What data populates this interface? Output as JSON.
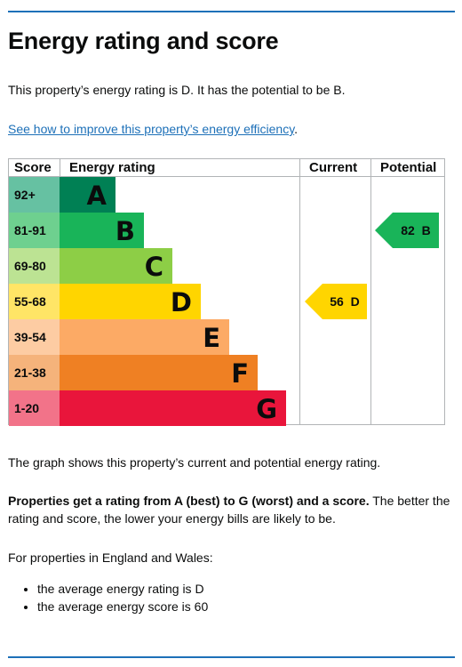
{
  "heading": "Energy rating and score",
  "intro": "This property’s energy rating is D. It has the potential to be B.",
  "improve_link": "See how to improve this property’s energy efficiency",
  "improve_suffix": ".",
  "chart_data": {
    "type": "table",
    "headers": {
      "score": "Score",
      "rating": "Energy rating",
      "current": "Current",
      "potential": "Potential"
    },
    "bands": [
      {
        "score": "92+",
        "letter": "A",
        "color": "#008054",
        "score_bg": "#66c1a2"
      },
      {
        "score": "81-91",
        "letter": "B",
        "color": "#19b459",
        "score_bg": "#6ed08f"
      },
      {
        "score": "69-80",
        "letter": "C",
        "color": "#8dce46",
        "score_bg": "#bce393"
      },
      {
        "score": "55-68",
        "letter": "D",
        "color": "#ffd500",
        "score_bg": "#ffe566"
      },
      {
        "score": "39-54",
        "letter": "E",
        "color": "#fcaa65",
        "score_bg": "#fdcca3"
      },
      {
        "score": "21-38",
        "letter": "F",
        "color": "#ef8023",
        "score_bg": "#f5b37b"
      },
      {
        "score": "1-20",
        "letter": "G",
        "color": "#e9153b",
        "score_bg": "#f27389"
      }
    ],
    "current": {
      "value": 56,
      "letter": "D",
      "label": "56  D",
      "color": "#ffd500"
    },
    "potential": {
      "value": 82,
      "letter": "B",
      "label": "82  B",
      "color": "#19b459"
    }
  },
  "graph_note": "The graph shows this property’s current and potential energy rating.",
  "props_bold": "Properties get a rating from A (best) to G (worst) and a score.",
  "props_rest": " The better the rating and score, the lower your energy bills are likely to be.",
  "region_intro": "For properties in England and Wales:",
  "averages": [
    "the average energy rating is D",
    "the average energy score is 60"
  ]
}
